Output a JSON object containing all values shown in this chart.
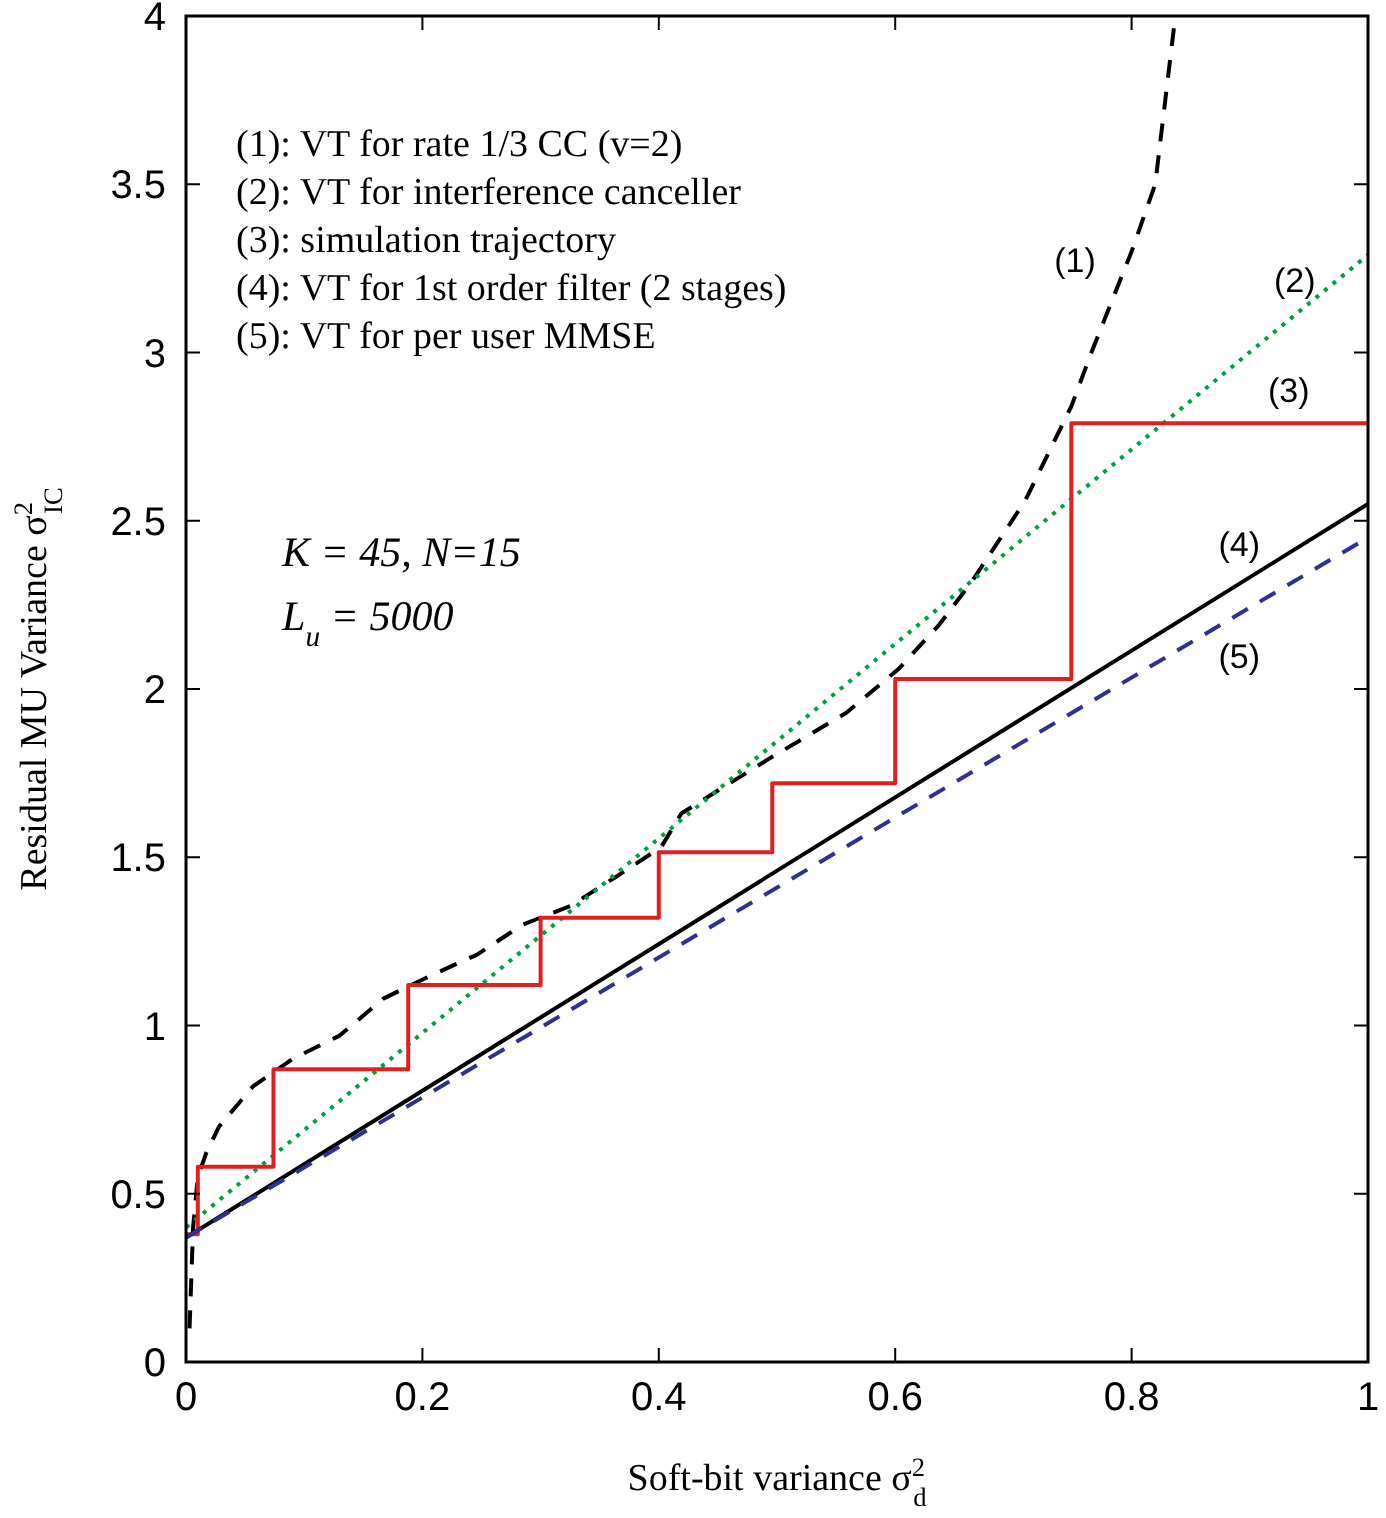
{
  "chart_data": {
    "type": "line",
    "xlabel": "Soft-bit variance σ$^{2}$$_{d}$",
    "ylabel": "Residual MU Variance σ$^{2}$$_{IC}$",
    "xlim": [
      0,
      1
    ],
    "xticks": [
      0,
      0.2,
      0.4,
      0.6,
      0.8,
      1
    ],
    "ylim": [
      0,
      4
    ],
    "yticks": [
      0,
      0.5,
      1,
      1.5,
      2,
      2.5,
      3,
      3.5,
      4
    ],
    "grid": false,
    "marker": "none",
    "series": [
      {
        "color": "#000000",
        "line_style": "dashed",
        "x": [
          0.003,
          0.006,
          0.01,
          0.017,
          0.028,
          0.057,
          0.09,
          0.13,
          0.167,
          0.208,
          0.246,
          0.285,
          0.325,
          0.363,
          0.402,
          0.419,
          0.492,
          0.559,
          0.603,
          0.637,
          0.665,
          0.71,
          0.749,
          0.766,
          0.8,
          0.82,
          0.837
        ],
        "values": [
          0.1,
          0.4,
          0.55,
          0.62,
          0.7,
          0.82,
          0.9,
          0.97,
          1.08,
          1.15,
          1.21,
          1.3,
          1.355,
          1.44,
          1.53,
          1.63,
          1.79,
          1.93,
          2.06,
          2.19,
          2.32,
          2.56,
          2.84,
          3.0,
          3.3,
          3.5,
          4.0
        ]
      },
      {
        "color": "#00a040",
        "line_style": "dotted",
        "x": [
          0,
          1
        ],
        "values": [
          0.4,
          3.29
        ]
      },
      {
        "type": "step",
        "color": "#e02020",
        "line_style": "solid",
        "x": [
          0,
          0.01,
          0.074,
          0.188,
          0.3,
          0.4,
          0.496,
          0.6,
          0.749,
          1
        ],
        "values": [
          0.38,
          0.58,
          0.87,
          1.12,
          1.32,
          1.515,
          1.72,
          2.03,
          2.79,
          2.79
        ]
      },
      {
        "color": "#000000",
        "line_style": "solid",
        "x": [
          0,
          1
        ],
        "values": [
          0.37,
          2.55
        ]
      },
      {
        "color": "#2e3192",
        "line_style": "dashed",
        "x": [
          0,
          1
        ],
        "values": [
          0.37,
          2.45
        ]
      }
    ],
    "annotations": [
      "(1): VT for rate 1/3 CC (v=2)",
      "(2): VT for interference canceller",
      "(3): simulation trajectory",
      "(4): VT for 1st order filter (2 stages)",
      "(5): VT for per user MMSE",
      "K = 45, N=15",
      "L$_{u}$ = 5000",
      "(1)",
      "(2)",
      "(3)",
      "(4)",
      "(5)"
    ]
  }
}
